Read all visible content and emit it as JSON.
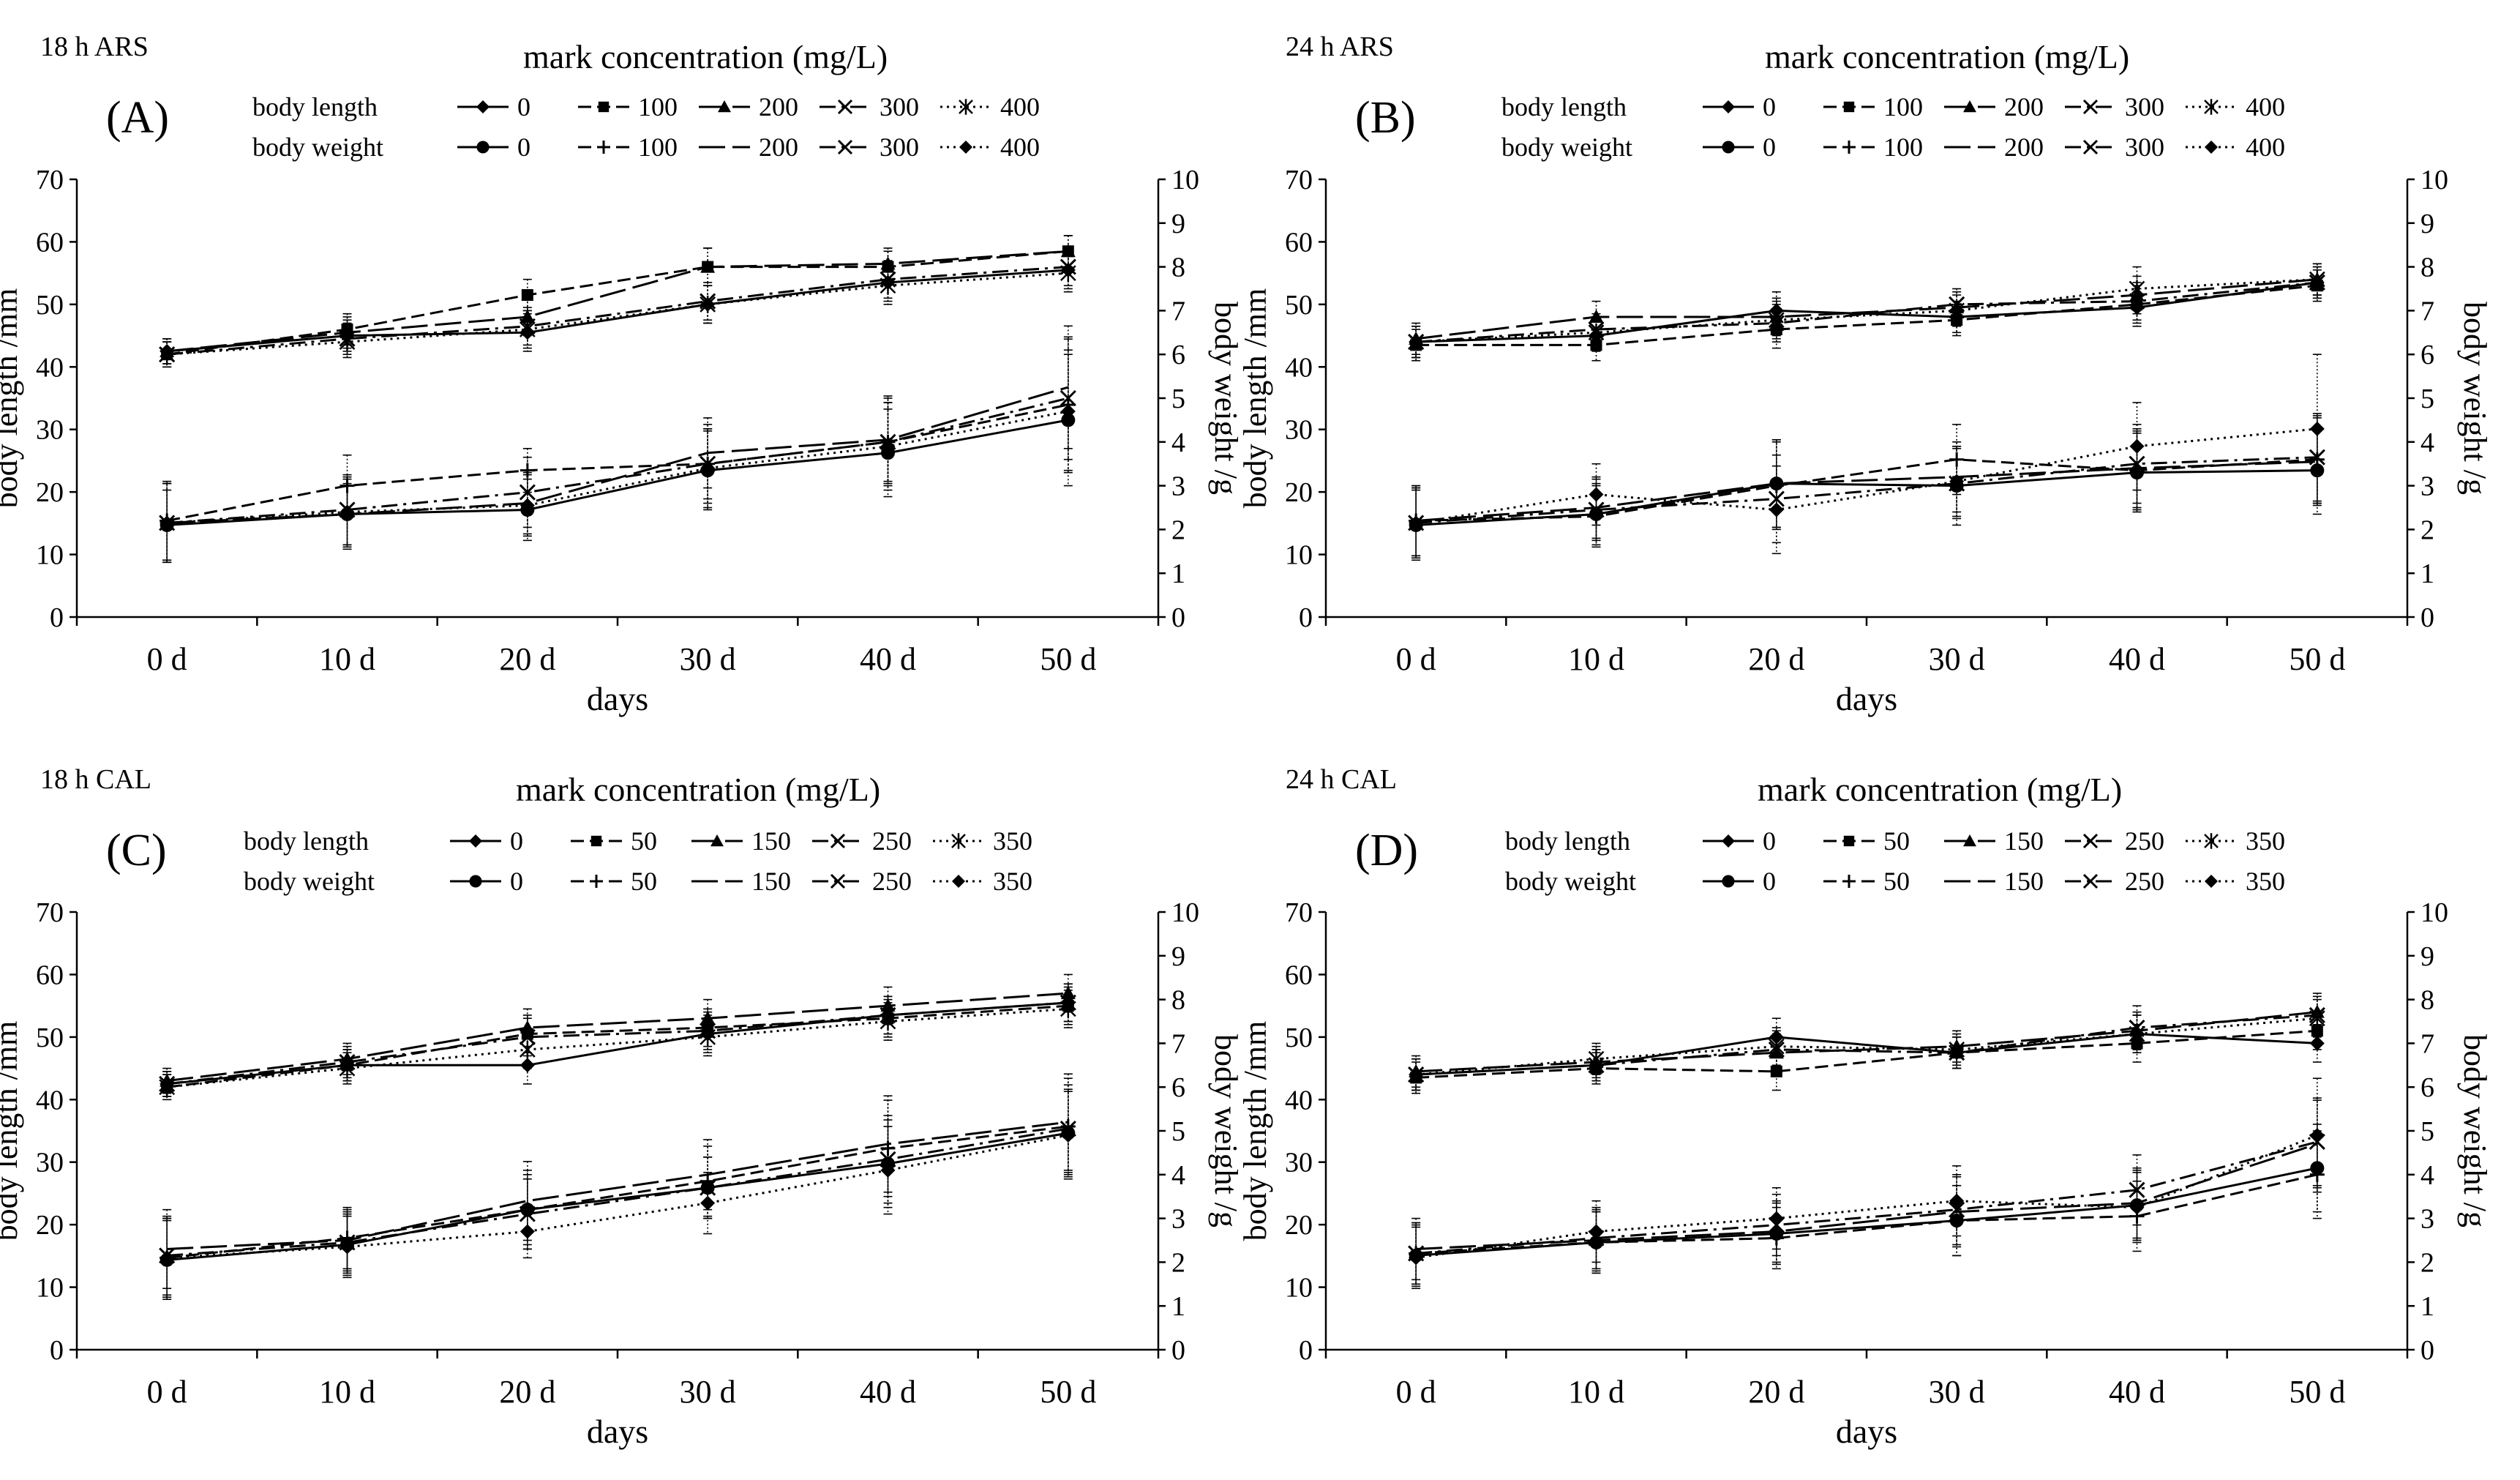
{
  "figure": {
    "x_axis_title": "days",
    "y_axis_title_left": "body length /mm",
    "y_axis_title_right": "body weight /g",
    "legend_row_labels": [
      "body length",
      "body weight"
    ]
  },
  "chart_data": [
    {
      "id": "A",
      "panel_label": "(A)",
      "condition": "18 h   ARS",
      "legend_title": "mark concentration (mg/L)",
      "type": "line",
      "categories": [
        "0 d",
        "10 d",
        "20 d",
        "30 d",
        "40 d",
        "50 d"
      ],
      "xlabel": "days",
      "ylabel": "body length /mm",
      "y2label": "body weight /g",
      "ylim": [
        0,
        70
      ],
      "y2lim": [
        0,
        10
      ],
      "yticks": [
        "0",
        "10",
        "20",
        "30",
        "40",
        "50",
        "60",
        "70"
      ],
      "y2ticks": [
        "0",
        "1",
        "2",
        "3",
        "4",
        "5",
        "6",
        "7",
        "8",
        "9",
        "10"
      ],
      "concentrations": [
        "0",
        "100",
        "200",
        "300",
        "400"
      ],
      "series": [
        {
          "name": "body length 0",
          "axis": "left",
          "values": [
            42.5,
            45.0,
            45.5,
            50.0,
            53.5,
            55.5
          ],
          "errors": [
            2.0,
            2.5,
            3.0,
            3.0,
            3.0,
            3.0
          ]
        },
        {
          "name": "body length 100",
          "axis": "left",
          "values": [
            42.0,
            46.0,
            51.5,
            56.0,
            56.0,
            58.5
          ],
          "errors": [
            2.0,
            2.5,
            2.5,
            3.0,
            2.5,
            2.5
          ]
        },
        {
          "name": "body length 200",
          "axis": "left",
          "values": [
            42.5,
            45.5,
            48.0,
            56.0,
            56.5,
            58.5
          ],
          "errors": [
            2.0,
            2.5,
            3.0,
            3.0,
            2.5,
            2.5
          ]
        },
        {
          "name": "body length 300",
          "axis": "left",
          "values": [
            42.0,
            44.5,
            46.5,
            50.5,
            54.0,
            56.0
          ],
          "errors": [
            2.0,
            2.5,
            3.0,
            3.0,
            3.0,
            3.0
          ]
        },
        {
          "name": "body length 400",
          "axis": "left",
          "values": [
            42.0,
            44.0,
            46.0,
            50.0,
            53.0,
            55.0
          ],
          "errors": [
            2.0,
            2.5,
            3.0,
            3.0,
            3.0,
            3.0
          ]
        },
        {
          "name": "body weight 0",
          "axis": "right",
          "values": [
            2.1,
            2.35,
            2.45,
            3.35,
            3.75,
            4.5
          ],
          "errors": [
            0.8,
            0.7,
            0.7,
            0.9,
            1.0,
            1.5
          ]
        },
        {
          "name": "body weight 100",
          "axis": "right",
          "values": [
            2.2,
            3.0,
            3.35,
            3.5,
            4.0,
            4.85
          ],
          "errors": [
            0.9,
            0.7,
            0.5,
            0.8,
            0.9,
            1.5
          ]
        },
        {
          "name": "body weight 200",
          "axis": "right",
          "values": [
            2.15,
            2.35,
            2.6,
            3.75,
            4.05,
            5.25
          ],
          "errors": [
            0.9,
            0.8,
            0.7,
            0.8,
            1.0,
            1.4
          ]
        },
        {
          "name": "body weight 300",
          "axis": "right",
          "values": [
            2.15,
            2.45,
            2.85,
            3.5,
            4.0,
            5.0
          ],
          "errors": [
            0.9,
            0.8,
            0.8,
            0.9,
            1.0,
            1.4
          ]
        },
        {
          "name": "body weight 400",
          "axis": "right",
          "values": [
            2.15,
            2.4,
            2.55,
            3.4,
            3.9,
            4.7
          ],
          "errors": [
            0.9,
            0.8,
            0.7,
            0.9,
            1.0,
            1.4
          ]
        }
      ]
    },
    {
      "id": "B",
      "panel_label": "(B)",
      "condition": "24 h   ARS",
      "legend_title": "mark concentration (mg/L)",
      "type": "line",
      "categories": [
        "0 d",
        "10 d",
        "20 d",
        "30 d",
        "40 d",
        "50 d"
      ],
      "xlabel": "days",
      "ylabel": "body length /mm",
      "y2label": "body weight /g",
      "ylim": [
        0,
        70
      ],
      "y2lim": [
        0,
        10
      ],
      "yticks": [
        "0",
        "10",
        "20",
        "30",
        "40",
        "50",
        "60",
        "70"
      ],
      "y2ticks": [
        "0",
        "1",
        "2",
        "3",
        "4",
        "5",
        "6",
        "7",
        "8",
        "9",
        "10"
      ],
      "concentrations": [
        "0",
        "100",
        "200",
        "300",
        "400"
      ],
      "series": [
        {
          "name": "body length 0",
          "axis": "left",
          "values": [
            44.0,
            45.0,
            49.0,
            48.0,
            49.5,
            53.5
          ],
          "errors": [
            2.5,
            2.5,
            3.0,
            2.5,
            3.0,
            2.5
          ]
        },
        {
          "name": "body length 100",
          "axis": "left",
          "values": [
            43.5,
            43.5,
            46.0,
            47.5,
            50.0,
            53.0
          ],
          "errors": [
            2.5,
            2.5,
            3.0,
            2.5,
            3.0,
            2.5
          ]
        },
        {
          "name": "body length 200",
          "axis": "left",
          "values": [
            44.5,
            48.0,
            48.0,
            49.5,
            51.5,
            54.0
          ],
          "errors": [
            2.5,
            2.5,
            3.0,
            2.5,
            3.0,
            2.5
          ]
        },
        {
          "name": "body length 300",
          "axis": "left",
          "values": [
            44.0,
            46.0,
            47.0,
            50.0,
            50.5,
            53.5
          ],
          "errors": [
            2.5,
            2.5,
            3.0,
            2.5,
            3.0,
            2.5
          ]
        },
        {
          "name": "body length 400",
          "axis": "left",
          "values": [
            44.0,
            45.5,
            47.5,
            49.0,
            52.5,
            54.0
          ],
          "errors": [
            2.5,
            2.5,
            3.0,
            2.5,
            3.5,
            2.5
          ]
        },
        {
          "name": "body weight 0",
          "axis": "right",
          "values": [
            2.1,
            2.35,
            3.05,
            3.0,
            3.3,
            3.35
          ],
          "errors": [
            0.8,
            0.7,
            1.0,
            0.9,
            0.9,
            1.0
          ]
        },
        {
          "name": "body weight 100",
          "axis": "right",
          "values": [
            2.2,
            2.3,
            3.0,
            3.6,
            3.35,
            3.6
          ],
          "errors": [
            0.8,
            0.7,
            1.0,
            0.8,
            0.9,
            1.0
          ]
        },
        {
          "name": "body weight 200",
          "axis": "right",
          "values": [
            2.2,
            2.5,
            3.05,
            3.2,
            3.4,
            3.55
          ],
          "errors": [
            0.8,
            0.7,
            1.0,
            0.8,
            0.9,
            1.0
          ]
        },
        {
          "name": "body weight 300",
          "axis": "right",
          "values": [
            2.15,
            2.45,
            2.7,
            3.05,
            3.5,
            3.65
          ],
          "errors": [
            0.8,
            0.7,
            1.0,
            0.8,
            0.9,
            1.0
          ]
        },
        {
          "name": "body weight 400",
          "axis": "right",
          "values": [
            2.15,
            2.8,
            2.45,
            3.1,
            3.9,
            4.3
          ],
          "errors": [
            0.8,
            0.7,
            1.0,
            0.8,
            1.0,
            1.7
          ]
        }
      ]
    },
    {
      "id": "C",
      "panel_label": "(C)",
      "condition": "18 h   CAL",
      "legend_title": "mark concentration (mg/L)",
      "type": "line",
      "categories": [
        "0 d",
        "10 d",
        "20 d",
        "30 d",
        "40 d",
        "50 d"
      ],
      "xlabel": "days",
      "ylabel": "body length /mm",
      "y2label": "body weight /g",
      "ylim": [
        0,
        70
      ],
      "y2lim": [
        0,
        10
      ],
      "yticks": [
        "0",
        "10",
        "20",
        "30",
        "40",
        "50",
        "60",
        "70"
      ],
      "y2ticks": [
        "0",
        "1",
        "2",
        "3",
        "4",
        "5",
        "6",
        "7",
        "8",
        "9",
        "10"
      ],
      "concentrations": [
        "0",
        "50",
        "150",
        "250",
        "350"
      ],
      "series": [
        {
          "name": "body length 0",
          "axis": "left",
          "values": [
            42.5,
            45.5,
            45.5,
            50.5,
            53.5,
            55.5
          ],
          "errors": [
            2.0,
            2.5,
            3.0,
            3.0,
            3.0,
            3.0
          ]
        },
        {
          "name": "body length 50",
          "axis": "left",
          "values": [
            42.0,
            45.5,
            50.5,
            51.5,
            53.0,
            55.0
          ],
          "errors": [
            2.0,
            2.5,
            3.0,
            3.0,
            3.0,
            3.0
          ]
        },
        {
          "name": "body length 150",
          "axis": "left",
          "values": [
            43.0,
            46.5,
            51.5,
            53.0,
            55.0,
            57.0
          ],
          "errors": [
            2.0,
            2.5,
            3.0,
            3.0,
            3.0,
            3.0
          ]
        },
        {
          "name": "body length 250",
          "axis": "left",
          "values": [
            42.5,
            46.0,
            50.0,
            51.0,
            53.5,
            55.5
          ],
          "errors": [
            2.0,
            2.5,
            3.0,
            3.0,
            3.0,
            3.0
          ]
        },
        {
          "name": "body length 350",
          "axis": "left",
          "values": [
            42.0,
            45.0,
            48.0,
            50.0,
            52.5,
            54.5
          ],
          "errors": [
            2.0,
            2.5,
            3.0,
            3.0,
            3.0,
            3.0
          ]
        },
        {
          "name": "body weight 0",
          "axis": "right",
          "values": [
            2.05,
            2.4,
            3.2,
            3.7,
            4.25,
            4.95
          ],
          "errors": [
            0.9,
            0.7,
            0.8,
            0.7,
            1.0,
            1.0
          ]
        },
        {
          "name": "body weight 50",
          "axis": "right",
          "values": [
            2.1,
            2.55,
            3.2,
            3.85,
            4.6,
            5.1
          ],
          "errors": [
            0.9,
            0.7,
            0.9,
            0.8,
            1.1,
            1.1
          ]
        },
        {
          "name": "body weight 150",
          "axis": "right",
          "values": [
            2.3,
            2.5,
            3.4,
            4.0,
            4.7,
            5.2
          ],
          "errors": [
            0.9,
            0.7,
            0.9,
            0.8,
            1.1,
            1.1
          ]
        },
        {
          "name": "body weight 250",
          "axis": "right",
          "values": [
            2.15,
            2.45,
            3.1,
            3.7,
            4.35,
            5.05
          ],
          "errors": [
            0.9,
            0.7,
            0.8,
            0.7,
            1.0,
            1.0
          ]
        },
        {
          "name": "body weight 350",
          "axis": "right",
          "values": [
            2.1,
            2.35,
            2.7,
            3.35,
            4.1,
            4.9
          ],
          "errors": [
            0.9,
            0.7,
            0.6,
            0.7,
            1.0,
            1.0
          ]
        }
      ]
    },
    {
      "id": "D",
      "panel_label": "(D)",
      "condition": "24 h   CAL",
      "legend_title": "mark concentration  (mg/L)",
      "type": "line",
      "categories": [
        "0 d",
        "10 d",
        "20 d",
        "30 d",
        "40 d",
        "50 d"
      ],
      "xlabel": "days",
      "ylabel": "body length /mm",
      "y2label": "body weight /g",
      "ylim": [
        0,
        70
      ],
      "y2lim": [
        0,
        10
      ],
      "yticks": [
        "0",
        "10",
        "20",
        "30",
        "40",
        "50",
        "60",
        "70"
      ],
      "y2ticks": [
        "0",
        "1",
        "2",
        "3",
        "4",
        "5",
        "6",
        "7",
        "8",
        "9",
        "10"
      ],
      "concentrations": [
        "0",
        "50",
        "150",
        "250",
        "350"
      ],
      "series": [
        {
          "name": "body length 0",
          "axis": "left",
          "values": [
            44.0,
            45.5,
            50.0,
            47.5,
            50.5,
            49.0
          ],
          "errors": [
            2.5,
            2.5,
            3.0,
            2.5,
            3.0,
            3.0
          ]
        },
        {
          "name": "body length 50",
          "axis": "left",
          "values": [
            43.5,
            45.0,
            44.5,
            47.5,
            49.0,
            51.0
          ],
          "errors": [
            2.5,
            2.5,
            3.0,
            2.5,
            3.0,
            3.0
          ]
        },
        {
          "name": "body length 150",
          "axis": "left",
          "values": [
            44.5,
            46.0,
            47.5,
            48.5,
            51.0,
            54.0
          ],
          "errors": [
            2.5,
            2.5,
            3.0,
            2.5,
            3.0,
            3.0
          ]
        },
        {
          "name": "body length 250",
          "axis": "left",
          "values": [
            44.0,
            45.5,
            48.0,
            47.5,
            51.5,
            53.5
          ],
          "errors": [
            2.5,
            2.5,
            3.0,
            2.5,
            3.5,
            3.0
          ]
        },
        {
          "name": "body length 350",
          "axis": "left",
          "values": [
            44.0,
            46.5,
            48.5,
            48.0,
            50.5,
            53.0
          ],
          "errors": [
            2.5,
            2.5,
            3.0,
            2.5,
            3.0,
            3.0
          ]
        },
        {
          "name": "body weight 0",
          "axis": "right",
          "values": [
            2.15,
            2.45,
            2.65,
            2.95,
            3.3,
            4.15
          ],
          "errors": [
            0.7,
            0.7,
            0.7,
            0.8,
            0.8,
            1.0
          ]
        },
        {
          "name": "body weight 50",
          "axis": "right",
          "values": [
            2.2,
            2.45,
            2.55,
            2.95,
            3.05,
            4.0
          ],
          "errors": [
            0.7,
            0.7,
            0.7,
            0.8,
            0.8,
            1.0
          ]
        },
        {
          "name": "body weight 150",
          "axis": "right",
          "values": [
            2.3,
            2.5,
            2.7,
            3.15,
            3.35,
            4.7
          ],
          "errors": [
            0.7,
            0.7,
            0.7,
            0.8,
            0.8,
            1.0
          ]
        },
        {
          "name": "body weight 250",
          "axis": "right",
          "values": [
            2.2,
            2.55,
            2.85,
            3.2,
            3.65,
            4.75
          ],
          "errors": [
            0.7,
            0.7,
            0.7,
            0.8,
            0.8,
            1.0
          ]
        },
        {
          "name": "body weight 350",
          "axis": "right",
          "values": [
            2.1,
            2.7,
            3.0,
            3.4,
            3.25,
            4.9
          ],
          "errors": [
            0.7,
            0.7,
            0.7,
            0.8,
            0.8,
            1.3
          ]
        }
      ]
    }
  ]
}
